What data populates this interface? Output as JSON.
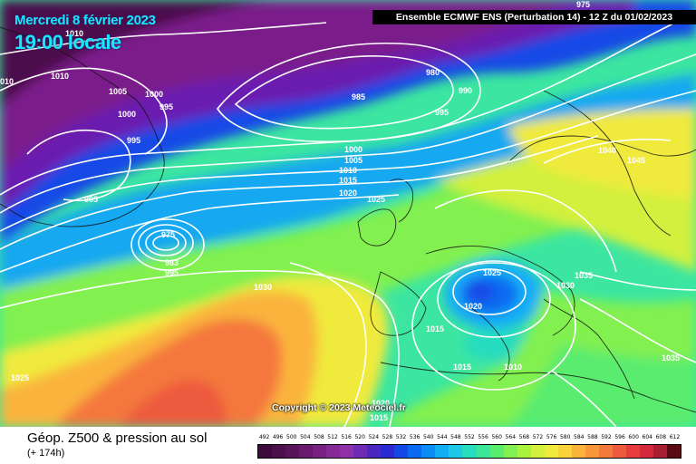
{
  "header": {
    "date": "Mercredi 8 février 2023",
    "local_time": "19:00 locale",
    "model_info": "Ensemble ECMWF ENS  (Perturbation 14)  -  12 Z du 01/02/2023"
  },
  "copyright": "Copyright © 2023 Meteociel.fr",
  "footer": {
    "title": "Géop. Z500 & pression au sol",
    "subtitle": "(+ 174h)"
  },
  "scale": {
    "labels": [
      "492",
      "496",
      "500",
      "504",
      "508",
      "512",
      "516",
      "520",
      "524",
      "528",
      "532",
      "536",
      "540",
      "544",
      "548",
      "552",
      "556",
      "560",
      "564",
      "568",
      "572",
      "576",
      "580",
      "584",
      "588",
      "592",
      "596",
      "600",
      "604",
      "608",
      "612"
    ],
    "colors": [
      "#3d0a3d",
      "#4b0f4b",
      "#5a145a",
      "#6a1a6e",
      "#781f82",
      "#862896",
      "#8f30a8",
      "#6f2ab6",
      "#4a28c0",
      "#2a2ad0",
      "#1448e6",
      "#0a6af0",
      "#0a8cf5",
      "#12aef5",
      "#1ec8e6",
      "#28dcbe",
      "#3ce696",
      "#5aec6e",
      "#82f050",
      "#aaf23c",
      "#d2f03c",
      "#f0ea3c",
      "#fad23c",
      "#fab43c",
      "#f8963c",
      "#f4783c",
      "#ee5a3c",
      "#e63c3c",
      "#d22a3c",
      "#a81e32",
      "#5a0a14"
    ]
  },
  "pressure_labels": [
    {
      "text": "1010"
    },
    {
      "text": "1005"
    },
    {
      "text": "1000"
    },
    {
      "text": "995"
    },
    {
      "text": "1000"
    },
    {
      "text": "995"
    },
    {
      "text": "1010"
    },
    {
      "text": "010"
    },
    {
      "text": "995"
    },
    {
      "text": "975"
    },
    {
      "text": "980"
    },
    {
      "text": "985"
    },
    {
      "text": "990"
    },
    {
      "text": "995"
    },
    {
      "text": "1000"
    },
    {
      "text": "1005"
    },
    {
      "text": "1010"
    },
    {
      "text": "1015"
    },
    {
      "text": "1020"
    },
    {
      "text": "1025"
    },
    {
      "text": "975"
    },
    {
      "text": "983"
    },
    {
      "text": "995"
    },
    {
      "text": "1030"
    },
    {
      "text": "1040"
    },
    {
      "text": "1045"
    },
    {
      "text": "1025"
    },
    {
      "text": "1035"
    },
    {
      "text": "1030"
    },
    {
      "text": "1020"
    },
    {
      "text": "1015"
    },
    {
      "text": "1015"
    },
    {
      "text": "1010"
    },
    {
      "text": "1035"
    },
    {
      "text": "1025"
    },
    {
      "text": "1020"
    },
    {
      "text": "1015"
    }
  ]
}
